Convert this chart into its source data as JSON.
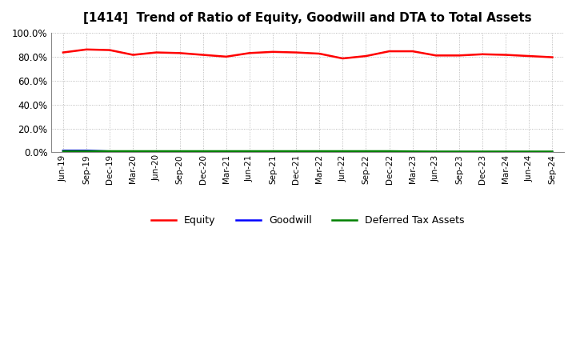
{
  "title": "[1414]  Trend of Ratio of Equity, Goodwill and DTA to Total Assets",
  "x_labels": [
    "Jun-19",
    "Sep-19",
    "Dec-19",
    "Mar-20",
    "Jun-20",
    "Sep-20",
    "Dec-20",
    "Mar-21",
    "Jun-21",
    "Sep-21",
    "Dec-21",
    "Mar-22",
    "Jun-22",
    "Sep-22",
    "Dec-22",
    "Mar-23",
    "Jun-23",
    "Sep-23",
    "Dec-23",
    "Mar-24",
    "Jun-24",
    "Sep-24"
  ],
  "equity": [
    83.5,
    86.0,
    85.5,
    81.5,
    83.5,
    83.0,
    81.5,
    80.0,
    83.0,
    84.0,
    83.5,
    82.5,
    78.5,
    80.5,
    84.5,
    84.5,
    81.0,
    81.0,
    82.0,
    81.5,
    80.5,
    79.5
  ],
  "goodwill": [
    1.5,
    1.5,
    0.8,
    0.8,
    0.8,
    0.8,
    0.8,
    0.8,
    0.8,
    0.8,
    0.8,
    0.8,
    0.8,
    0.3,
    0.2,
    0.2,
    0.2,
    0.2,
    0.1,
    0.1,
    0.1,
    0.1
  ],
  "dta": [
    1.0,
    1.0,
    1.0,
    1.0,
    1.0,
    1.0,
    1.0,
    1.0,
    1.0,
    1.0,
    1.0,
    1.0,
    1.0,
    1.0,
    1.0,
    0.8,
    0.7,
    0.7,
    0.7,
    0.7,
    0.7,
    0.7
  ],
  "equity_color": "#ff0000",
  "goodwill_color": "#0000ff",
  "dta_color": "#008000",
  "ylim": [
    0,
    100
  ],
  "yticks": [
    0,
    20,
    40,
    60,
    80,
    100
  ],
  "background_color": "#ffffff",
  "grid_color": "#aaaaaa",
  "title_fontsize": 11,
  "legend_labels": [
    "Equity",
    "Goodwill",
    "Deferred Tax Assets"
  ]
}
